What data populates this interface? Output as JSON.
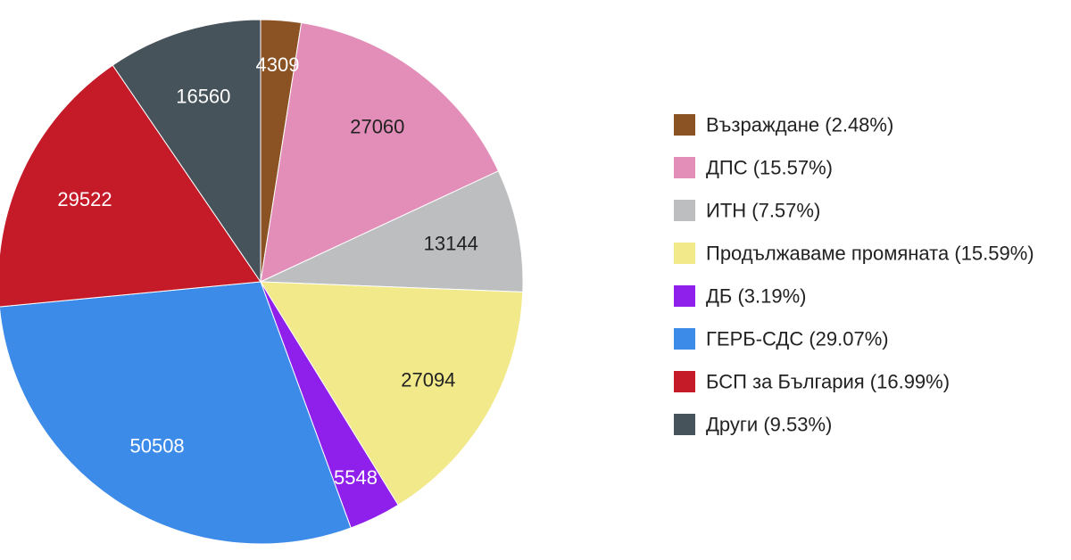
{
  "chart_data": {
    "type": "pie",
    "legend_position": "right",
    "slices": [
      {
        "label": "4309",
        "value": 4309,
        "legend": "Възраждане (2.48%)",
        "color": "#8B5224",
        "label_color": "#ffffff"
      },
      {
        "label": "27060",
        "value": 27060,
        "legend": "ДПС (15.57%)",
        "color": "#E28EB8",
        "label_color": "#222222"
      },
      {
        "label": "13144",
        "value": 13144,
        "legend": "ИТН (7.57%)",
        "color": "#BDBEC0",
        "label_color": "#222222"
      },
      {
        "label": "27094",
        "value": 27094,
        "legend": "Продължаваме промяната (15.59%)",
        "color": "#F2E98B",
        "label_color": "#222222"
      },
      {
        "label": "5548",
        "value": 5548,
        "legend": "ДБ (3.19%)",
        "color": "#8F1FEA",
        "label_color": "#ffffff"
      },
      {
        "label": "50508",
        "value": 50508,
        "legend": "ГЕРБ-СДС (29.07%)",
        "color": "#3C8BE8",
        "label_color": "#ffffff"
      },
      {
        "label": "29522",
        "value": 29522,
        "legend": "БСП за България (16.99%)",
        "color": "#C51A28",
        "label_color": "#ffffff"
      },
      {
        "label": "16560",
        "value": 16560,
        "legend": "Други (9.53%)",
        "color": "#47535A",
        "label_color": "#ffffff"
      }
    ]
  }
}
